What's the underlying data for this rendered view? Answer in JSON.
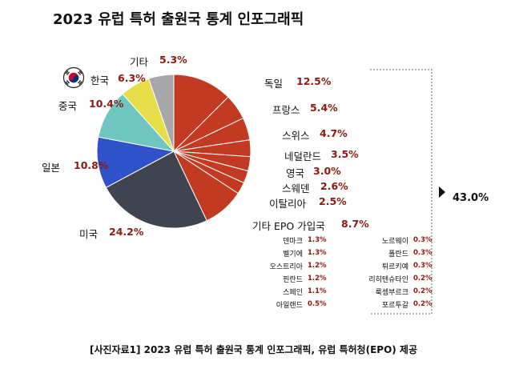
{
  "title": "2023 유럽 특허 출원국 통계 인포그래픽",
  "caption": "[사진자료1] 2023 유럽 특허 출원국 통계 인포그래픽, 유럽 특허청(EPO) 제공",
  "colors": {
    "europe": "#c23a22",
    "usa": "#404451",
    "japan": "#2f52c9",
    "china": "#6fc6c0",
    "korea": "#e6de49",
    "others": "#a8a8aa",
    "value": "#8b1a10"
  },
  "chart_data": {
    "type": "pie",
    "title": "2023 유럽 특허 출원국 통계 인포그래픽",
    "slices": [
      {
        "label": "독일",
        "value": 12.5,
        "display": "12.5%",
        "group": "europe"
      },
      {
        "label": "프랑스",
        "value": 5.4,
        "display": "5.4%",
        "group": "europe"
      },
      {
        "label": "스위스",
        "value": 4.7,
        "display": "4.7%",
        "group": "europe"
      },
      {
        "label": "네덜란드",
        "value": 3.5,
        "display": "3.5%",
        "group": "europe"
      },
      {
        "label": "영국",
        "value": 3.0,
        "display": "3.0%",
        "group": "europe"
      },
      {
        "label": "스웨덴",
        "value": 2.6,
        "display": "2.6%",
        "group": "europe"
      },
      {
        "label": "이탈리아",
        "value": 2.5,
        "display": "2.5%",
        "group": "europe"
      },
      {
        "label": "기타 EPO 가입국",
        "value": 8.7,
        "display": "8.7%",
        "group": "europe"
      },
      {
        "label": "미국",
        "value": 24.2,
        "display": "24.2%",
        "group": "usa"
      },
      {
        "label": "일본",
        "value": 10.8,
        "display": "10.8%",
        "group": "japan"
      },
      {
        "label": "중국",
        "value": 10.4,
        "display": "10.4%",
        "group": "china"
      },
      {
        "label": "한국",
        "value": 6.3,
        "display": "6.3%",
        "group": "korea"
      },
      {
        "label": "기타",
        "value": 5.3,
        "display": "5.3%",
        "group": "others"
      }
    ],
    "epo_total": "43.0%",
    "other_epo_breakdown": {
      "left": [
        {
          "label": "덴마크",
          "value": "1.3%"
        },
        {
          "label": "벨기에",
          "value": "1.3%"
        },
        {
          "label": "오스트리아",
          "value": "1.2%"
        },
        {
          "label": "핀란드",
          "value": "1.2%"
        },
        {
          "label": "스페인",
          "value": "1.1%"
        },
        {
          "label": "아일랜드",
          "value": "0.5%"
        }
      ],
      "right": [
        {
          "label": "노르웨이",
          "value": "0.3%"
        },
        {
          "label": "폴란드",
          "value": "0.3%"
        },
        {
          "label": "튀르키예",
          "value": "0.3%"
        },
        {
          "label": "리히텐슈타인",
          "value": "0.2%"
        },
        {
          "label": "룩셈부르크",
          "value": "0.2%"
        },
        {
          "label": "포르투갈",
          "value": "0.2%"
        }
      ]
    }
  }
}
